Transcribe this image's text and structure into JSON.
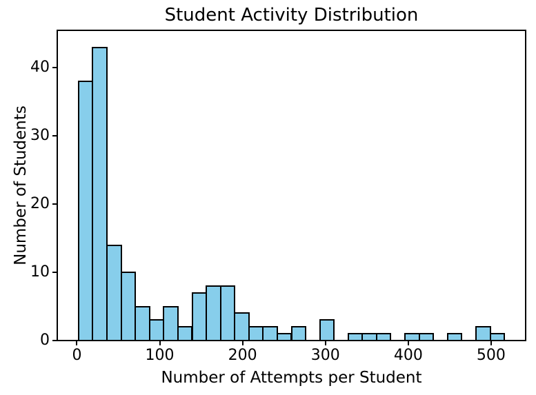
{
  "chart_data": {
    "type": "bar",
    "subtype": "histogram",
    "title": "Student Activity Distribution",
    "xlabel": "Number of Attempts per Student",
    "ylabel": "Number of Students",
    "bin_edges": [
      2,
      19.1,
      36.3,
      53.4,
      70.5,
      87.7,
      104.8,
      121.9,
      139.1,
      156.2,
      173.3,
      190.5,
      207.6,
      224.7,
      241.9,
      259.0,
      276.1,
      293.3,
      310.4,
      327.5,
      344.7,
      361.8,
      378.9,
      396.1,
      413.2,
      430.3,
      447.5,
      464.6,
      481.7,
      498.9,
      516
    ],
    "counts": [
      38,
      43,
      14,
      10,
      5,
      3,
      5,
      2,
      7,
      8,
      8,
      4,
      2,
      2,
      1,
      2,
      0,
      3,
      0,
      1,
      1,
      1,
      0,
      1,
      1,
      0,
      1,
      0,
      2,
      1
    ],
    "x_ticks": [
      0,
      100,
      200,
      300,
      400,
      500
    ],
    "y_ticks": [
      0,
      10,
      20,
      30,
      40
    ],
    "xlim": [
      -23.7,
      541.7
    ],
    "ylim": [
      0,
      45.5
    ],
    "grid": false,
    "bar_fill_color": "#87CEEB",
    "bar_edge_color": "#000000",
    "axis_color": "#000000",
    "background_color": "#ffffff"
  }
}
